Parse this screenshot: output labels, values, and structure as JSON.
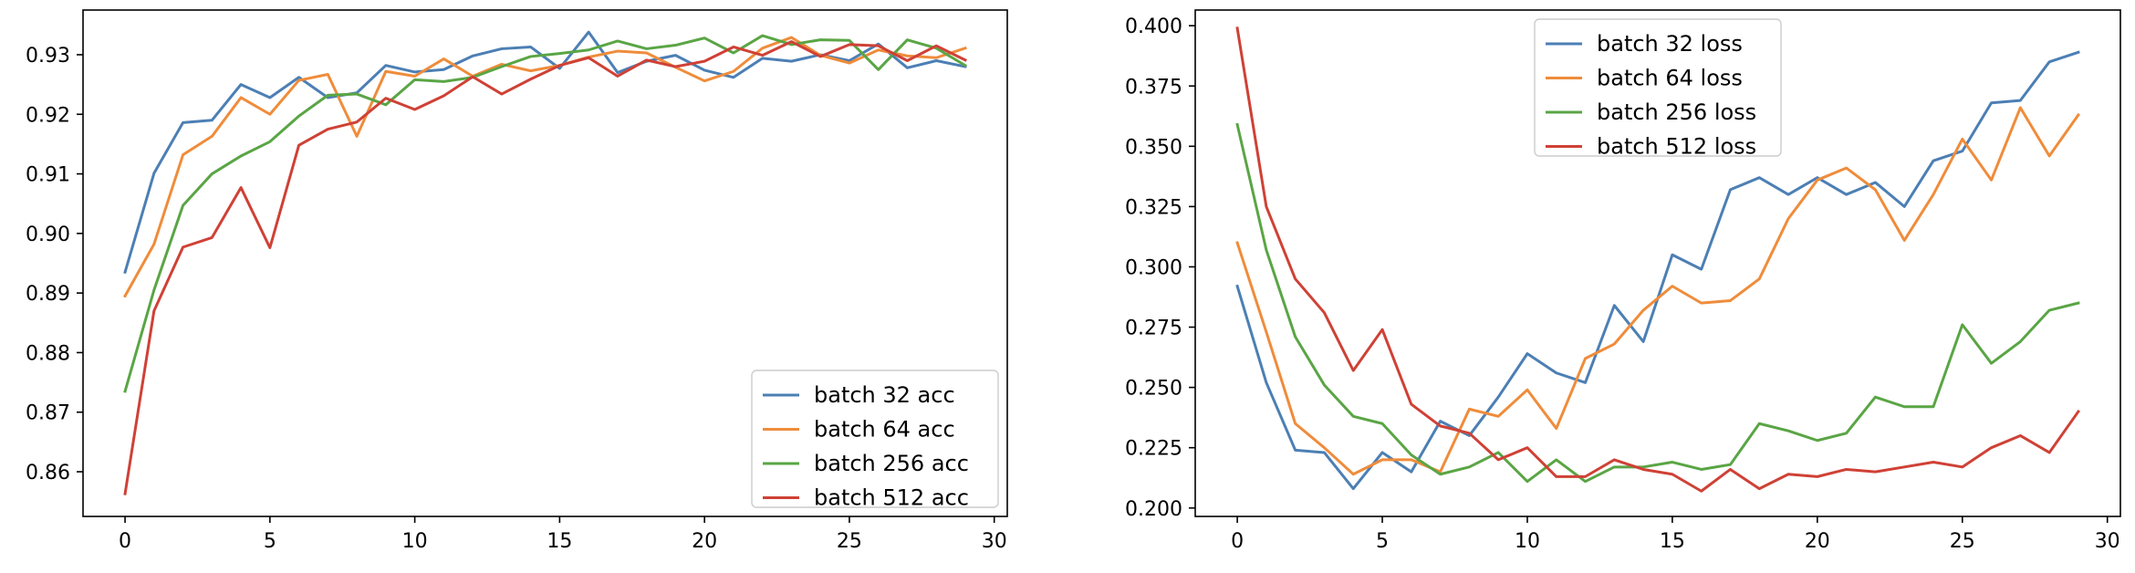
{
  "chart_data": [
    {
      "type": "line",
      "title": "",
      "xlabel": "",
      "ylabel": "",
      "xlim": [
        -1.45,
        30.45
      ],
      "ylim": [
        0.8525,
        0.9375
      ],
      "x_ticks": [
        0,
        5,
        10,
        15,
        20,
        25,
        30
      ],
      "y_ticks": [
        0.86,
        0.87,
        0.88,
        0.89,
        0.9,
        0.91,
        0.92,
        0.93
      ],
      "x_tick_labels": [
        "0",
        "5",
        "10",
        "15",
        "20",
        "25",
        "30"
      ],
      "y_tick_labels": [
        "0.86",
        "0.87",
        "0.88",
        "0.89",
        "0.90",
        "0.91",
        "0.92",
        "0.93"
      ],
      "grid": false,
      "legend_position": "lower-right",
      "x": [
        0,
        1,
        2,
        3,
        4,
        5,
        6,
        7,
        8,
        9,
        10,
        11,
        12,
        13,
        14,
        15,
        16,
        17,
        18,
        19,
        20,
        21,
        22,
        23,
        24,
        25,
        26,
        27,
        28,
        29
      ],
      "series": [
        {
          "name": "batch 32 acc",
          "color": "#4c7fb4",
          "values": [
            0.8935,
            0.9101,
            0.9186,
            0.919,
            0.925,
            0.9228,
            0.9262,
            0.9228,
            0.9236,
            0.9282,
            0.9271,
            0.9275,
            0.9298,
            0.931,
            0.9313,
            0.9277,
            0.9338,
            0.927,
            0.9289,
            0.9299,
            0.9274,
            0.9262,
            0.9294,
            0.9289,
            0.93,
            0.929,
            0.9318,
            0.9278,
            0.929,
            0.928
          ]
        },
        {
          "name": "batch 64 acc",
          "color": "#ef8c3b",
          "values": [
            0.8895,
            0.8982,
            0.9132,
            0.9163,
            0.9228,
            0.92,
            0.9257,
            0.9267,
            0.9163,
            0.9272,
            0.9264,
            0.9293,
            0.9264,
            0.9284,
            0.9273,
            0.9282,
            0.9296,
            0.9306,
            0.9303,
            0.9279,
            0.9256,
            0.9272,
            0.9311,
            0.9329,
            0.9299,
            0.9286,
            0.9308,
            0.9298,
            0.9295,
            0.9311
          ]
        },
        {
          "name": "batch 256 acc",
          "color": "#5aa545",
          "values": [
            0.8735,
            0.8905,
            0.9047,
            0.91,
            0.913,
            0.9154,
            0.9197,
            0.9232,
            0.9234,
            0.9216,
            0.9258,
            0.9255,
            0.9262,
            0.928,
            0.9297,
            0.9302,
            0.9308,
            0.9323,
            0.931,
            0.9316,
            0.9328,
            0.9303,
            0.9332,
            0.9317,
            0.9325,
            0.9324,
            0.9275,
            0.9325,
            0.9311,
            0.9282
          ]
        },
        {
          "name": "batch 512 acc",
          "color": "#cf4136",
          "values": [
            0.8563,
            0.887,
            0.8977,
            0.8993,
            0.9077,
            0.8976,
            0.9148,
            0.9175,
            0.9187,
            0.9227,
            0.9208,
            0.9231,
            0.9263,
            0.9234,
            0.9259,
            0.9282,
            0.9295,
            0.9264,
            0.9291,
            0.928,
            0.9289,
            0.9313,
            0.9299,
            0.9322,
            0.9297,
            0.9317,
            0.9315,
            0.929,
            0.9315,
            0.9291
          ]
        }
      ]
    },
    {
      "type": "line",
      "title": "",
      "xlabel": "",
      "ylabel": "",
      "xlim": [
        -1.45,
        30.45
      ],
      "ylim": [
        0.1965,
        0.4065
      ],
      "x_ticks": [
        0,
        5,
        10,
        15,
        20,
        25,
        30
      ],
      "y_ticks": [
        0.2,
        0.225,
        0.25,
        0.275,
        0.3,
        0.325,
        0.35,
        0.375,
        0.4
      ],
      "x_tick_labels": [
        "0",
        "5",
        "10",
        "15",
        "20",
        "25",
        "30"
      ],
      "y_tick_labels": [
        "0.200",
        "0.225",
        "0.250",
        "0.275",
        "0.300",
        "0.325",
        "0.350",
        "0.375",
        "0.400"
      ],
      "grid": false,
      "legend_position": "upper-center",
      "x": [
        0,
        1,
        2,
        3,
        4,
        5,
        6,
        7,
        8,
        9,
        10,
        11,
        12,
        13,
        14,
        15,
        16,
        17,
        18,
        19,
        20,
        21,
        22,
        23,
        24,
        25,
        26,
        27,
        28,
        29
      ],
      "series": [
        {
          "name": "batch 32 loss",
          "color": "#4c7fb4",
          "values": [
            0.292,
            0.252,
            0.224,
            0.223,
            0.208,
            0.223,
            0.215,
            0.236,
            0.23,
            0.246,
            0.264,
            0.256,
            0.252,
            0.284,
            0.269,
            0.305,
            0.299,
            0.332,
            0.337,
            0.33,
            0.337,
            0.33,
            0.335,
            0.325,
            0.344,
            0.348,
            0.368,
            0.369,
            0.385,
            0.389
          ]
        },
        {
          "name": "batch 64 loss",
          "color": "#ef8c3b",
          "values": [
            0.31,
            0.273,
            0.235,
            0.225,
            0.214,
            0.22,
            0.22,
            0.215,
            0.241,
            0.238,
            0.249,
            0.233,
            0.262,
            0.268,
            0.282,
            0.292,
            0.285,
            0.286,
            0.295,
            0.32,
            0.336,
            0.341,
            0.332,
            0.311,
            0.33,
            0.353,
            0.336,
            0.366,
            0.346,
            0.363
          ]
        },
        {
          "name": "batch 256 loss",
          "color": "#5aa545",
          "values": [
            0.359,
            0.307,
            0.271,
            0.251,
            0.238,
            0.235,
            0.222,
            0.214,
            0.217,
            0.223,
            0.211,
            0.22,
            0.211,
            0.217,
            0.217,
            0.219,
            0.216,
            0.218,
            0.235,
            0.232,
            0.228,
            0.231,
            0.246,
            0.242,
            0.242,
            0.276,
            0.26,
            0.269,
            0.282,
            0.285
          ]
        },
        {
          "name": "batch 512 loss",
          "color": "#cf4136",
          "values": [
            0.399,
            0.325,
            0.295,
            0.281,
            0.257,
            0.274,
            0.243,
            0.234,
            0.231,
            0.22,
            0.225,
            0.213,
            0.213,
            0.22,
            0.216,
            0.214,
            0.207,
            0.216,
            0.208,
            0.214,
            0.213,
            0.216,
            0.215,
            0.217,
            0.219,
            0.217,
            0.225,
            0.23,
            0.223,
            0.24
          ]
        }
      ]
    }
  ]
}
